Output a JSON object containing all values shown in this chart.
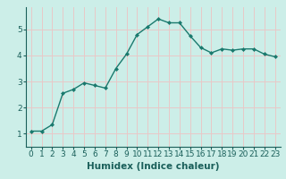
{
  "x": [
    0,
    1,
    2,
    3,
    4,
    5,
    6,
    7,
    8,
    9,
    10,
    11,
    12,
    13,
    14,
    15,
    16,
    17,
    18,
    19,
    20,
    21,
    22,
    23
  ],
  "y": [
    1.1,
    1.1,
    1.35,
    2.55,
    2.7,
    2.95,
    2.85,
    2.75,
    3.5,
    4.05,
    4.8,
    5.1,
    5.4,
    5.25,
    5.25,
    4.75,
    4.3,
    4.1,
    4.25,
    4.2,
    4.25,
    4.25,
    4.05,
    3.95
  ],
  "line_color": "#1a7a6e",
  "marker": "D",
  "marker_size": 2.0,
  "line_width": 1.0,
  "xlabel": "Humidex (Indice chaleur)",
  "xlim": [
    -0.5,
    23.5
  ],
  "ylim": [
    0.5,
    5.85
  ],
  "yticks": [
    1,
    2,
    3,
    4,
    5
  ],
  "xticks": [
    0,
    1,
    2,
    3,
    4,
    5,
    6,
    7,
    8,
    9,
    10,
    11,
    12,
    13,
    14,
    15,
    16,
    17,
    18,
    19,
    20,
    21,
    22,
    23
  ],
  "bg_color": "#cceee8",
  "grid_color": "#e8c8c8",
  "tick_color": "#1a5f5a",
  "xlabel_fontsize": 7.5,
  "tick_fontsize": 6.5
}
